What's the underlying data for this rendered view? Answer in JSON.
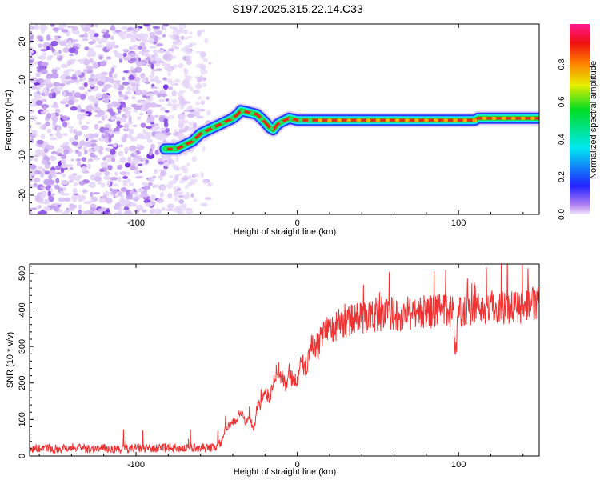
{
  "chart_data": [
    {
      "type": "heatmap",
      "title": "S197.2025.315.22.14.C33",
      "xlabel": "Height of straight line (km)",
      "ylabel": "Frequency (Hz)",
      "xlim": [
        -166,
        150
      ],
      "ylim": [
        -25,
        24.5
      ],
      "xticks": [
        "-100",
        "0",
        "100"
      ],
      "yticks": [
        "20",
        "10",
        "0",
        "-10",
        "-20"
      ],
      "colorbar": {
        "label": "Normalized spectral amplitude",
        "ticks": [
          "0.0",
          "0.2",
          "0.4",
          "0.6",
          "0.8"
        ],
        "range": [
          0,
          1
        ]
      },
      "ridge": {
        "x": [
          -82,
          -75,
          -70,
          -65,
          -60,
          -55,
          -50,
          -45,
          -40,
          -37,
          -35,
          -30,
          -25,
          -20,
          -17,
          -15,
          -12,
          -10,
          -5,
          0,
          10,
          30,
          60,
          90,
          110,
          112,
          130,
          140,
          150
        ],
        "y": [
          -8,
          -8,
          -7,
          -6,
          -4,
          -3,
          -2,
          -1,
          0,
          1,
          2,
          1.5,
          1,
          -1,
          -2.5,
          -3,
          -1.5,
          -1,
          0,
          -0.5,
          -0.5,
          -0.5,
          -0.5,
          -0.5,
          -0.5,
          0,
          0,
          0,
          0
        ]
      },
      "noise_region_x": [
        -166,
        -58
      ]
    },
    {
      "type": "line",
      "xlabel": "Height of straight line (km)",
      "ylabel": "SNR (10 * v/v)",
      "xlim": [
        -166,
        150
      ],
      "ylim": [
        0,
        526
      ],
      "xticks": [
        "-100",
        "0",
        "100"
      ],
      "yticks": [
        "0",
        "100",
        "200",
        "300",
        "400",
        "500"
      ],
      "series": [
        {
          "name": "SNR",
          "color": "#ee3333",
          "x": [
            -166,
            -160,
            -150,
            -140,
            -130,
            -120,
            -110,
            -100,
            -90,
            -80,
            -70,
            -60,
            -55,
            -50,
            -47,
            -45,
            -42,
            -40,
            -37,
            -35,
            -32,
            -30,
            -27,
            -25,
            -22,
            -20,
            -17,
            -15,
            -12,
            -10,
            -7,
            -5,
            -2,
            0,
            3,
            5,
            8,
            10,
            13,
            15,
            18,
            20,
            25,
            30,
            35,
            40,
            50,
            60,
            70,
            80,
            90,
            97,
            98,
            100,
            110,
            120,
            130,
            140,
            150
          ],
          "values": [
            20,
            22,
            19,
            24,
            20,
            21,
            18,
            22,
            20,
            23,
            21,
            24,
            22,
            25,
            40,
            70,
            85,
            95,
            100,
            120,
            90,
            110,
            70,
            130,
            150,
            170,
            160,
            200,
            240,
            220,
            190,
            230,
            200,
            210,
            260,
            240,
            290,
            310,
            300,
            330,
            345,
            340,
            360,
            365,
            375,
            380,
            385,
            388,
            390,
            395,
            398,
            400,
            260,
            400,
            405,
            408,
            410,
            412,
            415
          ]
        }
      ]
    }
  ]
}
